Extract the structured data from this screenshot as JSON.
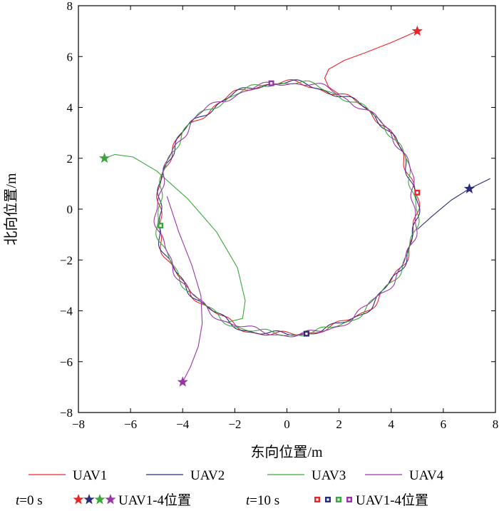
{
  "chart_data": {
    "type": "line",
    "title": "",
    "xlabel": "东向位置/m",
    "ylabel": "北向位置/m",
    "xlim": [
      -8,
      8
    ],
    "ylim": [
      -8,
      8
    ],
    "xticks": [
      "−8",
      "−6",
      "−4",
      "−2",
      "0",
      "2",
      "4",
      "6",
      "8"
    ],
    "yticks": [
      "−8",
      "−6",
      "−4",
      "−2",
      "0",
      "2",
      "4",
      "6",
      "8"
    ],
    "grid": false,
    "circle": {
      "cx": 0,
      "cy": 0,
      "r": 4.95
    },
    "series": [
      {
        "name": "UAV1",
        "color": "#e8262a",
        "start": [
          5.0,
          7.0
        ],
        "pos_t10": [
          5.0,
          0.65
        ],
        "approach": [
          [
            5.0,
            7.0
          ],
          [
            4.0,
            6.55
          ],
          [
            3.0,
            6.15
          ],
          [
            2.2,
            5.85
          ],
          [
            1.6,
            5.5
          ],
          [
            1.45,
            5.15
          ],
          [
            1.6,
            4.8
          ],
          [
            2.0,
            4.52
          ]
        ],
        "phase": 0.5
      },
      {
        "name": "UAV2",
        "color": "#2b2c7c",
        "start": [
          7.0,
          0.8
        ],
        "pos_t10": [
          0.75,
          -4.9
        ],
        "approach": [
          [
            7.8,
            1.2
          ],
          [
            7.0,
            0.8
          ],
          [
            6.3,
            0.35
          ],
          [
            5.6,
            -0.25
          ],
          [
            5.0,
            -0.8
          ]
        ],
        "phase": 1.1
      },
      {
        "name": "UAV3",
        "color": "#3aa83a",
        "start": [
          -7.0,
          2.0
        ],
        "pos_t10": [
          -4.85,
          -0.65
        ],
        "approach": [
          [
            -7.0,
            2.0
          ],
          [
            -6.6,
            2.15
          ],
          [
            -5.9,
            2.05
          ],
          [
            -5.0,
            1.5
          ],
          [
            -3.8,
            0.4
          ],
          [
            -2.7,
            -0.9
          ],
          [
            -1.9,
            -2.3
          ],
          [
            -1.6,
            -3.6
          ],
          [
            -1.7,
            -4.3
          ],
          [
            -2.3,
            -4.45
          ]
        ],
        "phase": 2.3
      },
      {
        "name": "UAV4",
        "color": "#9a35a8",
        "start": [
          -4.0,
          -6.8
        ],
        "pos_t10": [
          -0.6,
          4.95
        ],
        "approach": [
          [
            -4.0,
            -6.8
          ],
          [
            -3.7,
            -6.2
          ],
          [
            -3.4,
            -5.4
          ],
          [
            -3.25,
            -4.5
          ],
          [
            -3.3,
            -3.4
          ],
          [
            -3.65,
            -2.2
          ],
          [
            -4.15,
            -0.9
          ],
          [
            -4.6,
            0.5
          ]
        ],
        "phase": 3.7
      }
    ],
    "legend": {
      "t0_label_t": "t",
      "t0_label_eq": "=0 s",
      "t0_caption": "UAV1-4位置",
      "t10_label_t": "t",
      "t10_label_eq": "=10 s",
      "t10_caption": "UAV1-4位置"
    }
  }
}
